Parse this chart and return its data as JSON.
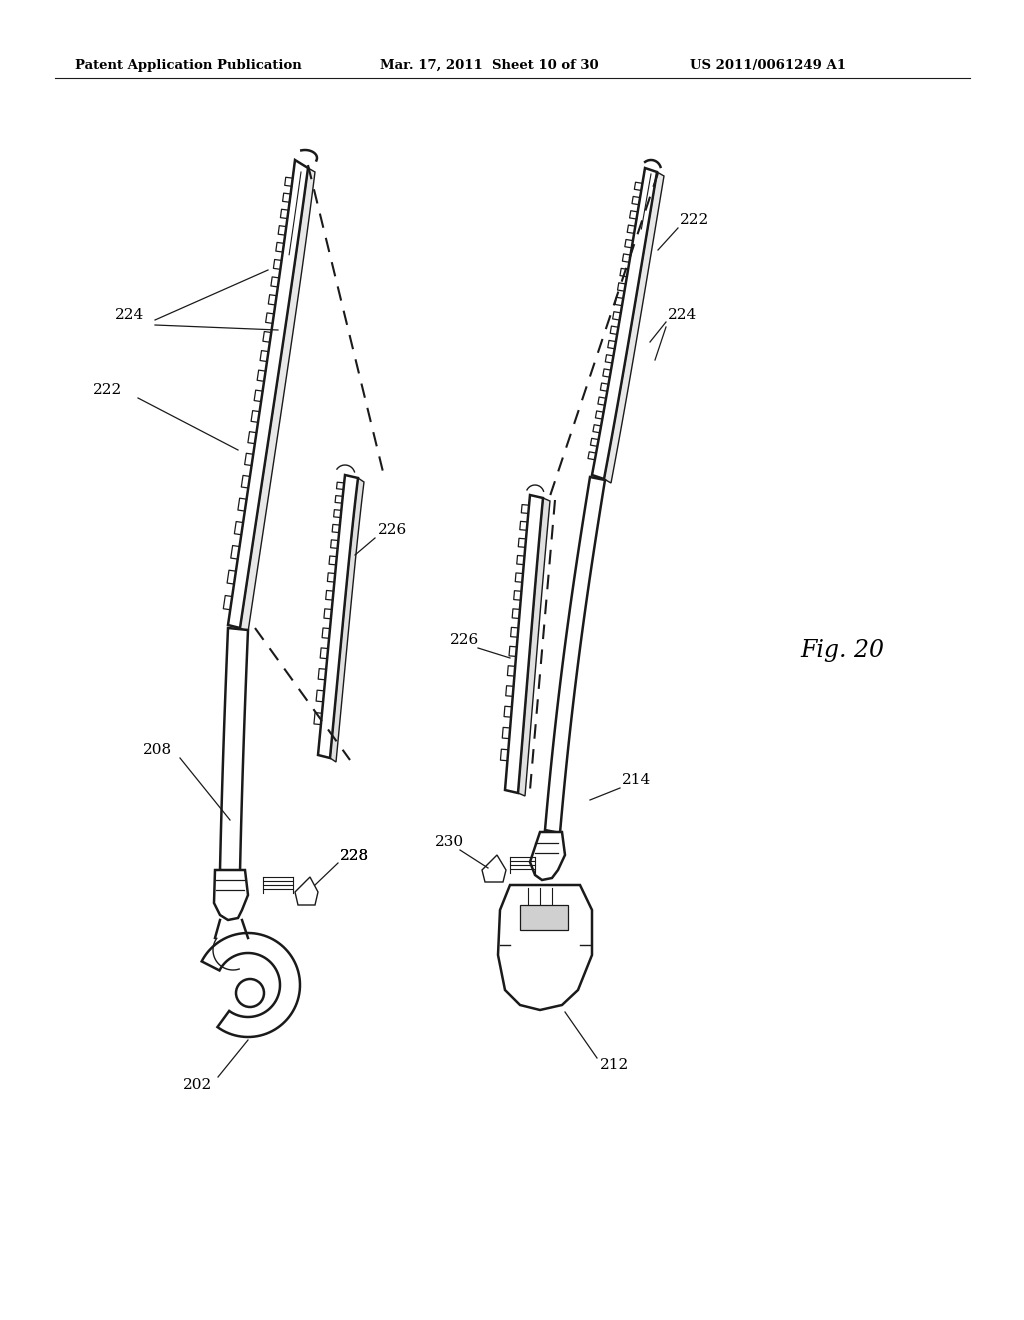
{
  "bg_color": "#ffffff",
  "header_left": "Patent Application Publication",
  "header_mid": "Mar. 17, 2011  Sheet 10 of 30",
  "header_right": "US 2011/0061249 A1",
  "fig_label": "Fig. 20"
}
